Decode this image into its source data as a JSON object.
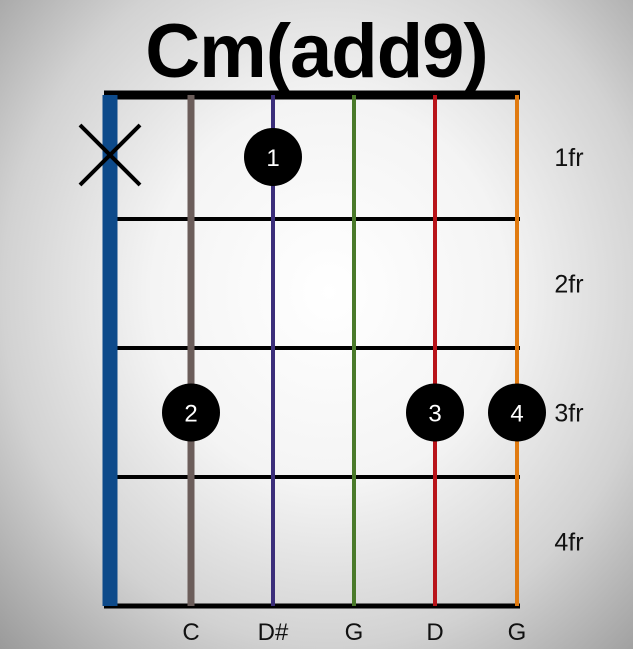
{
  "title": "Cm(add9)",
  "strings": [
    {
      "note": "",
      "color": "#0d4a8a",
      "state": "muted"
    },
    {
      "note": "C",
      "color": "#6b5d5a",
      "state": "open"
    },
    {
      "note": "D#",
      "color": "#3b2e7a",
      "state": "open"
    },
    {
      "note": "G",
      "color": "#4a7a2a",
      "state": "open"
    },
    {
      "note": "D",
      "color": "#b8141a",
      "state": "open"
    },
    {
      "note": "G",
      "color": "#e07a10",
      "state": "open"
    }
  ],
  "fret_labels": [
    "1fr",
    "2fr",
    "3fr",
    "4fr"
  ],
  "fingers": [
    {
      "number": "1",
      "string": 2,
      "fret": 1
    },
    {
      "number": "2",
      "string": 1,
      "fret": 3
    },
    {
      "number": "3",
      "string": 4,
      "fret": 3
    },
    {
      "number": "4",
      "string": 5,
      "fret": 3
    }
  ]
}
